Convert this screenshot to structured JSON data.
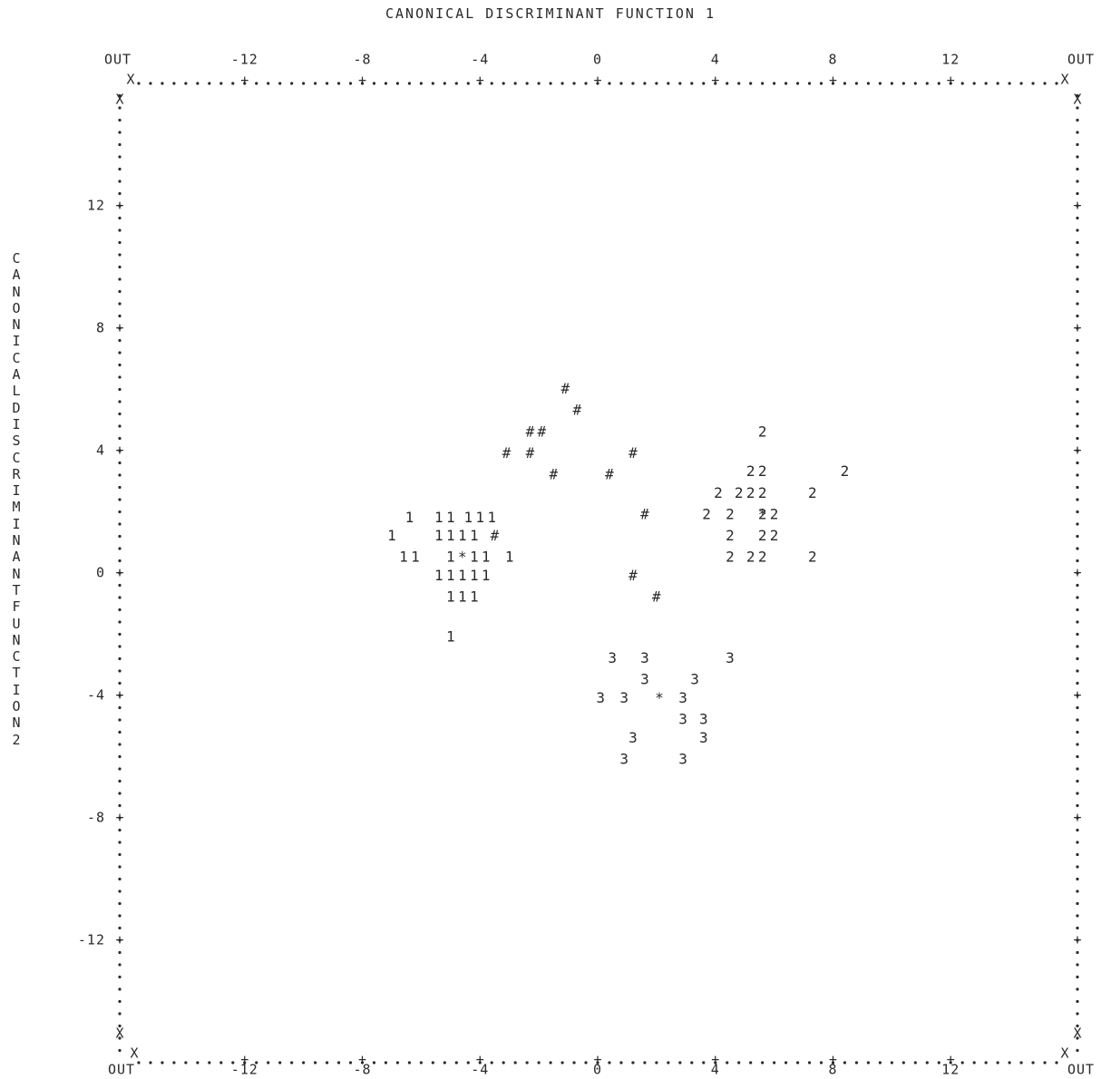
{
  "chart_data": {
    "type": "scatter",
    "title": "CANONICAL DISCRIMINANT FUNCTION 1",
    "xlabel": "CANONICAL DISCRIMINANT FUNCTION 1",
    "ylabel": "CANONICAL DISCRIMINANT FUNCTION 2",
    "xlim": [
      -16,
      16
    ],
    "ylim": [
      -16,
      16
    ],
    "x_ticks": [
      -12,
      -8,
      -4,
      0,
      4,
      8,
      12
    ],
    "y_ticks": [
      12,
      8,
      4,
      0,
      -4,
      -8,
      -12
    ],
    "out_label": "OUT",
    "corner_marker": "X",
    "grid": false,
    "series": [
      {
        "name": "1",
        "symbol": "1",
        "points": [
          [
            -6.4,
            1.8
          ],
          [
            -5.4,
            1.8
          ],
          [
            -5.0,
            1.8
          ],
          [
            -4.4,
            1.8
          ],
          [
            -4.0,
            1.8
          ],
          [
            -3.6,
            1.8
          ],
          [
            -7.0,
            1.2
          ],
          [
            -5.4,
            1.2
          ],
          [
            -5.0,
            1.2
          ],
          [
            -4.6,
            1.2
          ],
          [
            -4.2,
            1.2
          ],
          [
            -6.6,
            0.5
          ],
          [
            -6.2,
            0.5
          ],
          [
            -5.0,
            0.5
          ],
          [
            -4.2,
            0.5
          ],
          [
            -3.8,
            0.5
          ],
          [
            -3.0,
            0.5
          ],
          [
            -5.4,
            -0.1
          ],
          [
            -5.0,
            -0.1
          ],
          [
            -4.6,
            -0.1
          ],
          [
            -4.2,
            -0.1
          ],
          [
            -3.8,
            -0.1
          ],
          [
            -5.0,
            -0.8
          ],
          [
            -4.6,
            -0.8
          ],
          [
            -4.2,
            -0.8
          ],
          [
            -5.0,
            -2.1
          ]
        ]
      },
      {
        "name": "2",
        "symbol": "2",
        "points": [
          [
            5.6,
            4.6
          ],
          [
            5.2,
            3.3
          ],
          [
            5.6,
            3.3
          ],
          [
            8.4,
            3.3
          ],
          [
            4.1,
            2.6
          ],
          [
            4.8,
            2.6
          ],
          [
            5.2,
            2.6
          ],
          [
            5.6,
            2.6
          ],
          [
            7.3,
            2.6
          ],
          [
            3.7,
            1.9
          ],
          [
            4.5,
            1.9
          ],
          [
            5.6,
            1.9
          ],
          [
            6.0,
            1.9
          ],
          [
            4.5,
            1.2
          ],
          [
            5.6,
            1.2
          ],
          [
            6.0,
            1.2
          ],
          [
            4.5,
            0.5
          ],
          [
            5.2,
            0.5
          ],
          [
            5.6,
            0.5
          ],
          [
            7.3,
            0.5
          ]
        ]
      },
      {
        "name": "3",
        "symbol": "3",
        "points": [
          [
            0.5,
            -2.8
          ],
          [
            1.6,
            -2.8
          ],
          [
            4.5,
            -2.8
          ],
          [
            1.6,
            -3.5
          ],
          [
            3.3,
            -3.5
          ],
          [
            0.1,
            -4.1
          ],
          [
            0.9,
            -4.1
          ],
          [
            2.9,
            -4.1
          ],
          [
            2.9,
            -4.8
          ],
          [
            3.6,
            -4.8
          ],
          [
            1.2,
            -5.4
          ],
          [
            3.6,
            -5.4
          ],
          [
            0.9,
            -6.1
          ],
          [
            2.9,
            -6.1
          ]
        ]
      },
      {
        "name": "#",
        "symbol": "#",
        "points": [
          [
            -1.1,
            6.0
          ],
          [
            -0.7,
            5.3
          ],
          [
            -2.3,
            4.6
          ],
          [
            -1.9,
            4.6
          ],
          [
            -3.1,
            3.9
          ],
          [
            -2.3,
            3.9
          ],
          [
            1.2,
            3.9
          ],
          [
            -1.5,
            3.2
          ],
          [
            0.4,
            3.2
          ],
          [
            1.6,
            1.9
          ],
          [
            -3.5,
            1.2
          ],
          [
            1.2,
            -0.1
          ],
          [
            2.0,
            -0.8
          ]
        ]
      },
      {
        "name": "*",
        "symbol": "*",
        "points": [
          [
            -4.6,
            0.5
          ],
          [
            5.6,
            1.9
          ],
          [
            2.1,
            -4.1
          ]
        ]
      }
    ]
  },
  "colors": {
    "ink": "#2a2a2a",
    "background": "#ffffff"
  }
}
